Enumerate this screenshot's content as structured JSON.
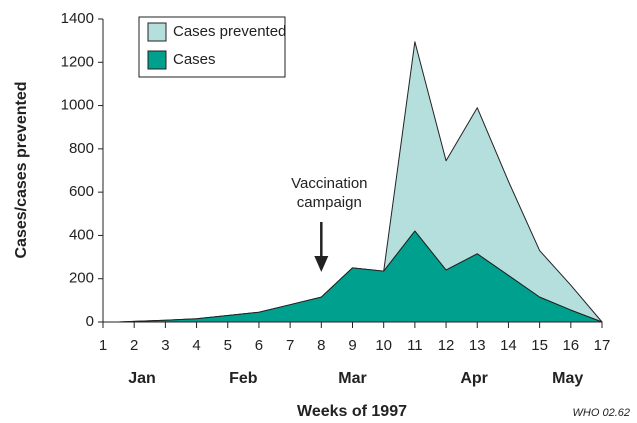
{
  "chart_data": {
    "type": "stacked_area",
    "xlabel": "Weeks of 1997",
    "ylabel": "Cases/cases prevented",
    "x": [
      1.5,
      2,
      3,
      4,
      5,
      6,
      7,
      8,
      9,
      10,
      11,
      12,
      13,
      14,
      15,
      16,
      17
    ],
    "series": [
      {
        "name": "Cases",
        "color": "#00a08f",
        "values": [
          0,
          3,
          8,
          15,
          30,
          45,
          80,
          115,
          250,
          235,
          420,
          240,
          315,
          215,
          115,
          55,
          0
        ]
      },
      {
        "name": "Cases prevented",
        "color": "#b4dfdc",
        "values": [
          0,
          0,
          0,
          0,
          0,
          0,
          0,
          0,
          0,
          0,
          875,
          505,
          675,
          435,
          215,
          115,
          0
        ]
      }
    ],
    "xlim": [
      1,
      17
    ],
    "ylim": [
      0,
      1400
    ],
    "xticks": [
      1,
      2,
      3,
      4,
      5,
      6,
      7,
      8,
      9,
      10,
      11,
      12,
      13,
      14,
      15,
      16,
      17
    ],
    "yticks": [
      0,
      200,
      400,
      600,
      800,
      1000,
      1200,
      1400
    ],
    "month_labels": [
      {
        "label": "Jan",
        "x": 2.25
      },
      {
        "label": "Feb",
        "x": 5.5
      },
      {
        "label": "Mar",
        "x": 9
      },
      {
        "label": "Apr",
        "x": 12.9
      },
      {
        "label": "May",
        "x": 15.9
      }
    ],
    "annotation": {
      "lines": [
        "Vaccination",
        "campaign"
      ],
      "x": 8
    },
    "source": "WHO 02.62",
    "legend": "top-left"
  }
}
